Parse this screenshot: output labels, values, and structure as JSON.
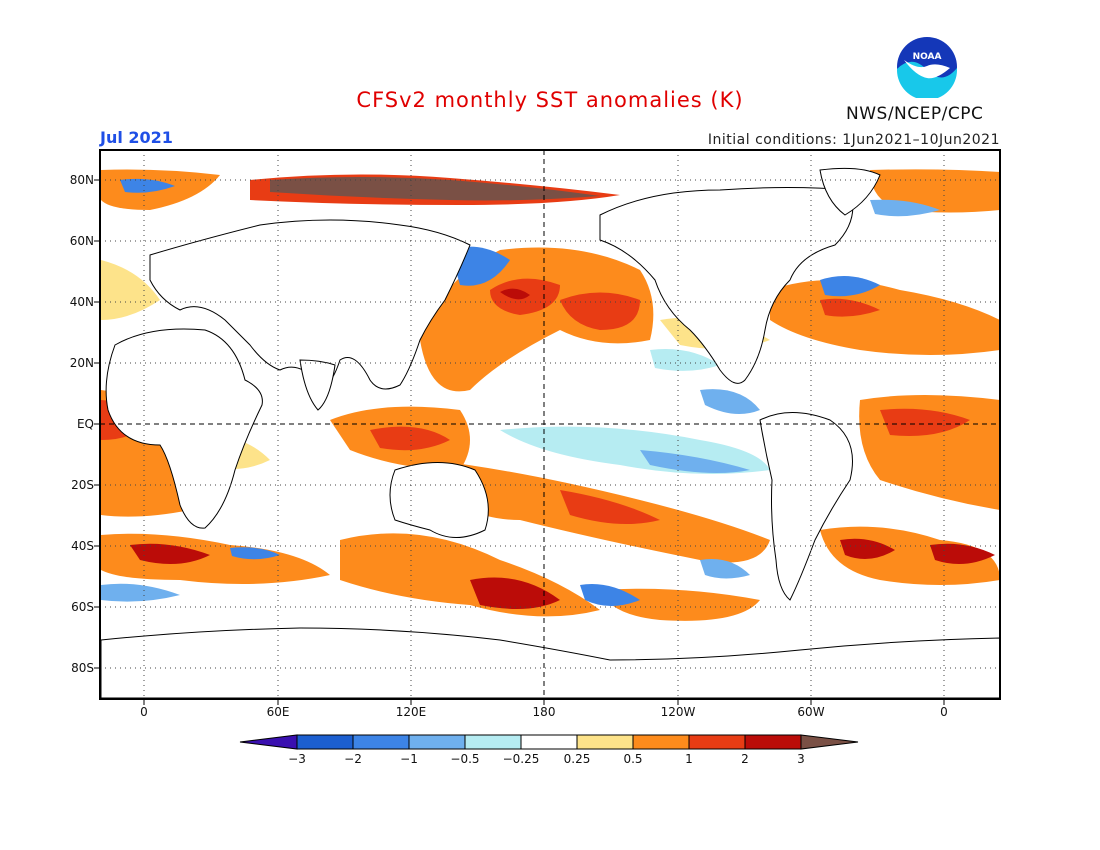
{
  "header": {
    "title": "CFSv2 monthly SST anomalies (K)",
    "month": "Jul 2021",
    "initial_conditions": "Initial conditions: 1Jun2021–10Jun2021",
    "organization": "NWS/NCEP/CPC",
    "logo_text": "NOAA"
  },
  "map": {
    "projection": "equirectangular",
    "lon_range": [
      -20,
      385
    ],
    "lat_range": [
      -90,
      90
    ],
    "lat_labels": [
      "80N",
      "60N",
      "40N",
      "20N",
      "EQ",
      "20S",
      "40S",
      "60S",
      "80S"
    ],
    "lon_labels": [
      "0",
      "60E",
      "120E",
      "180",
      "120W",
      "60W",
      "0"
    ],
    "grid": true
  },
  "colorbar": {
    "tick_labels": [
      "−3",
      "−2",
      "−1",
      "−0.5",
      "−0.25",
      "0.25",
      "0.5",
      "1",
      "2",
      "3"
    ],
    "colors": [
      "#3a10b0",
      "#1c5fd0",
      "#3d84e6",
      "#6fb0ee",
      "#b6ecf2",
      "#ffffff",
      "#fde38a",
      "#fd8b1c",
      "#e83c14",
      "#bb0c08",
      "#7a5045"
    ]
  }
}
